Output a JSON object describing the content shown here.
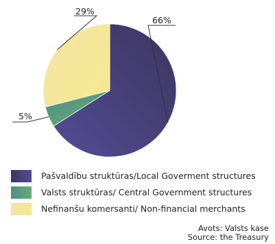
{
  "chart_data": {
    "type": "pie",
    "slices": [
      {
        "label": "Pašvaldību struktūras/Local Goverment structures",
        "value": 66,
        "value_label": "66%",
        "color": "#4a4478"
      },
      {
        "label": "Valsts struktūras/ Central Government structures",
        "value": 5,
        "value_label": "5%",
        "color": "#5e9e82"
      },
      {
        "label": "Nefinanšu komersanti/ Non-financial merchants",
        "value": 29,
        "value_label": "29%",
        "color": "#f5e8a4"
      }
    ],
    "legend_position": "bottom",
    "start_angle_deg": 0,
    "direction": "clockwise"
  },
  "source": {
    "line1": "Avots: Valsts kase",
    "line2": "Source: the Treasury"
  }
}
